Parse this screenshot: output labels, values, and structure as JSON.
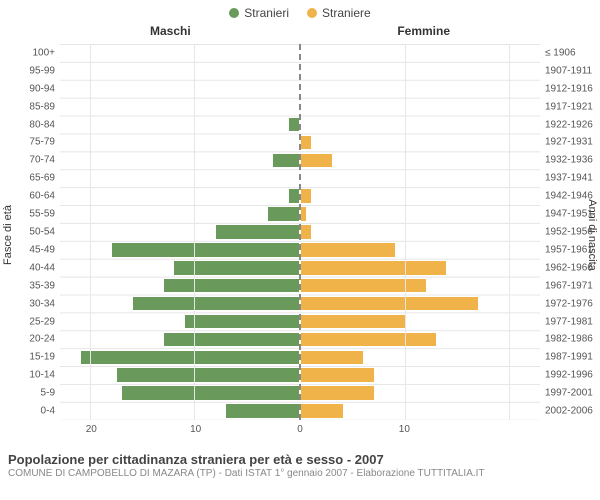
{
  "legend": {
    "male": {
      "label": "Stranieri",
      "color": "#6a9a5b"
    },
    "female": {
      "label": "Straniere",
      "color": "#f0b34a"
    }
  },
  "panels": {
    "left": "Maschi",
    "right": "Femmine"
  },
  "axis": {
    "left_title": "Fasce di età",
    "right_title": "Anni di nascita",
    "x_max": 23,
    "x_grid_step": 10,
    "x_ticks_left": [
      20,
      10,
      0
    ],
    "x_ticks_right": [
      10
    ]
  },
  "age_bands": [
    {
      "age": "100+",
      "years": "≤ 1906",
      "m": 0,
      "f": 0
    },
    {
      "age": "95-99",
      "years": "1907-1911",
      "m": 0,
      "f": 0
    },
    {
      "age": "90-94",
      "years": "1912-1916",
      "m": 0,
      "f": 0
    },
    {
      "age": "85-89",
      "years": "1917-1921",
      "m": 0,
      "f": 0
    },
    {
      "age": "80-84",
      "years": "1922-1926",
      "m": 1.0,
      "f": 0
    },
    {
      "age": "75-79",
      "years": "1927-1931",
      "m": 0,
      "f": 1.0
    },
    {
      "age": "70-74",
      "years": "1932-1936",
      "m": 2.5,
      "f": 3.0
    },
    {
      "age": "65-69",
      "years": "1937-1941",
      "m": 0,
      "f": 0
    },
    {
      "age": "60-64",
      "years": "1942-1946",
      "m": 1.0,
      "f": 1.0
    },
    {
      "age": "55-59",
      "years": "1947-1951",
      "m": 3.0,
      "f": 0.5
    },
    {
      "age": "50-54",
      "years": "1952-1956",
      "m": 8.0,
      "f": 1.0
    },
    {
      "age": "45-49",
      "years": "1957-1961",
      "m": 18.0,
      "f": 9.0
    },
    {
      "age": "40-44",
      "years": "1962-1966",
      "m": 12.0,
      "f": 14.0
    },
    {
      "age": "35-39",
      "years": "1967-1971",
      "m": 13.0,
      "f": 12.0
    },
    {
      "age": "30-34",
      "years": "1972-1976",
      "m": 16.0,
      "f": 17.0
    },
    {
      "age": "25-29",
      "years": "1977-1981",
      "m": 11.0,
      "f": 10.0
    },
    {
      "age": "20-24",
      "years": "1982-1986",
      "m": 13.0,
      "f": 13.0
    },
    {
      "age": "15-19",
      "years": "1987-1991",
      "m": 21.0,
      "f": 6.0
    },
    {
      "age": "10-14",
      "years": "1992-1996",
      "m": 17.5,
      "f": 7.0
    },
    {
      "age": "5-9",
      "years": "1997-2001",
      "m": 17.0,
      "f": 7.0
    },
    {
      "age": "0-4",
      "years": "2002-2006",
      "m": 7.0,
      "f": 4.0
    }
  ],
  "colors": {
    "bg": "#ffffff",
    "grid": "#e6e6e6",
    "axis_dash": "#888888",
    "text": "#444444",
    "subtext": "#888888"
  },
  "footer": {
    "title": "Popolazione per cittadinanza straniera per età e sesso - 2007",
    "subtitle": "COMUNE DI CAMPOBELLO DI MAZARA (TP) - Dati ISTAT 1° gennaio 2007 - Elaborazione TUTTITALIA.IT"
  }
}
